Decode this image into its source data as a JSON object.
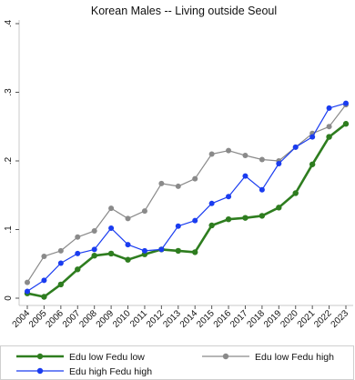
{
  "chart_data": {
    "type": "line",
    "title": "Korean Males -- Living outside Seoul",
    "xlabel": "",
    "ylabel": "",
    "x": [
      "2004",
      "2005",
      "2006",
      "2007",
      "2008",
      "2009",
      "2010",
      "2011",
      "2012",
      "2013",
      "2014",
      "2015",
      "2016",
      "2017",
      "2018",
      "2019",
      "2020",
      "2021",
      "2022",
      "2023"
    ],
    "yticks": [
      0,
      0.1,
      0.2,
      0.3,
      0.4
    ],
    "ytick_labels": [
      "0",
      ".1",
      ".2",
      ".3",
      ".4"
    ],
    "ylim": [
      0,
      0.4
    ],
    "grid": false,
    "legend_position": "bottom",
    "series": [
      {
        "name": "Edu low Fedu low",
        "color": "#2e7d1f",
        "values": [
          0.007,
          0.002,
          0.02,
          0.042,
          0.062,
          0.065,
          0.056,
          0.064,
          0.071,
          0.069,
          0.067,
          0.106,
          0.115,
          0.117,
          0.12,
          0.132,
          0.153,
          0.195,
          0.235,
          0.254
        ]
      },
      {
        "name": "Edu low Fedu high",
        "color": "#8a8a8a",
        "values": [
          0.023,
          0.061,
          0.069,
          0.089,
          0.098,
          0.131,
          0.116,
          0.127,
          0.167,
          0.163,
          0.174,
          0.21,
          0.215,
          0.208,
          0.202,
          0.2,
          0.22,
          0.24,
          0.25,
          0.282
        ]
      },
      {
        "name": "Edu high Fedu high",
        "color": "#1a3cf0",
        "values": [
          0.01,
          0.026,
          0.051,
          0.065,
          0.071,
          0.102,
          0.078,
          0.069,
          0.071,
          0.105,
          0.113,
          0.138,
          0.148,
          0.178,
          0.158,
          0.196,
          0.22,
          0.235,
          0.277,
          0.284
        ]
      }
    ]
  }
}
